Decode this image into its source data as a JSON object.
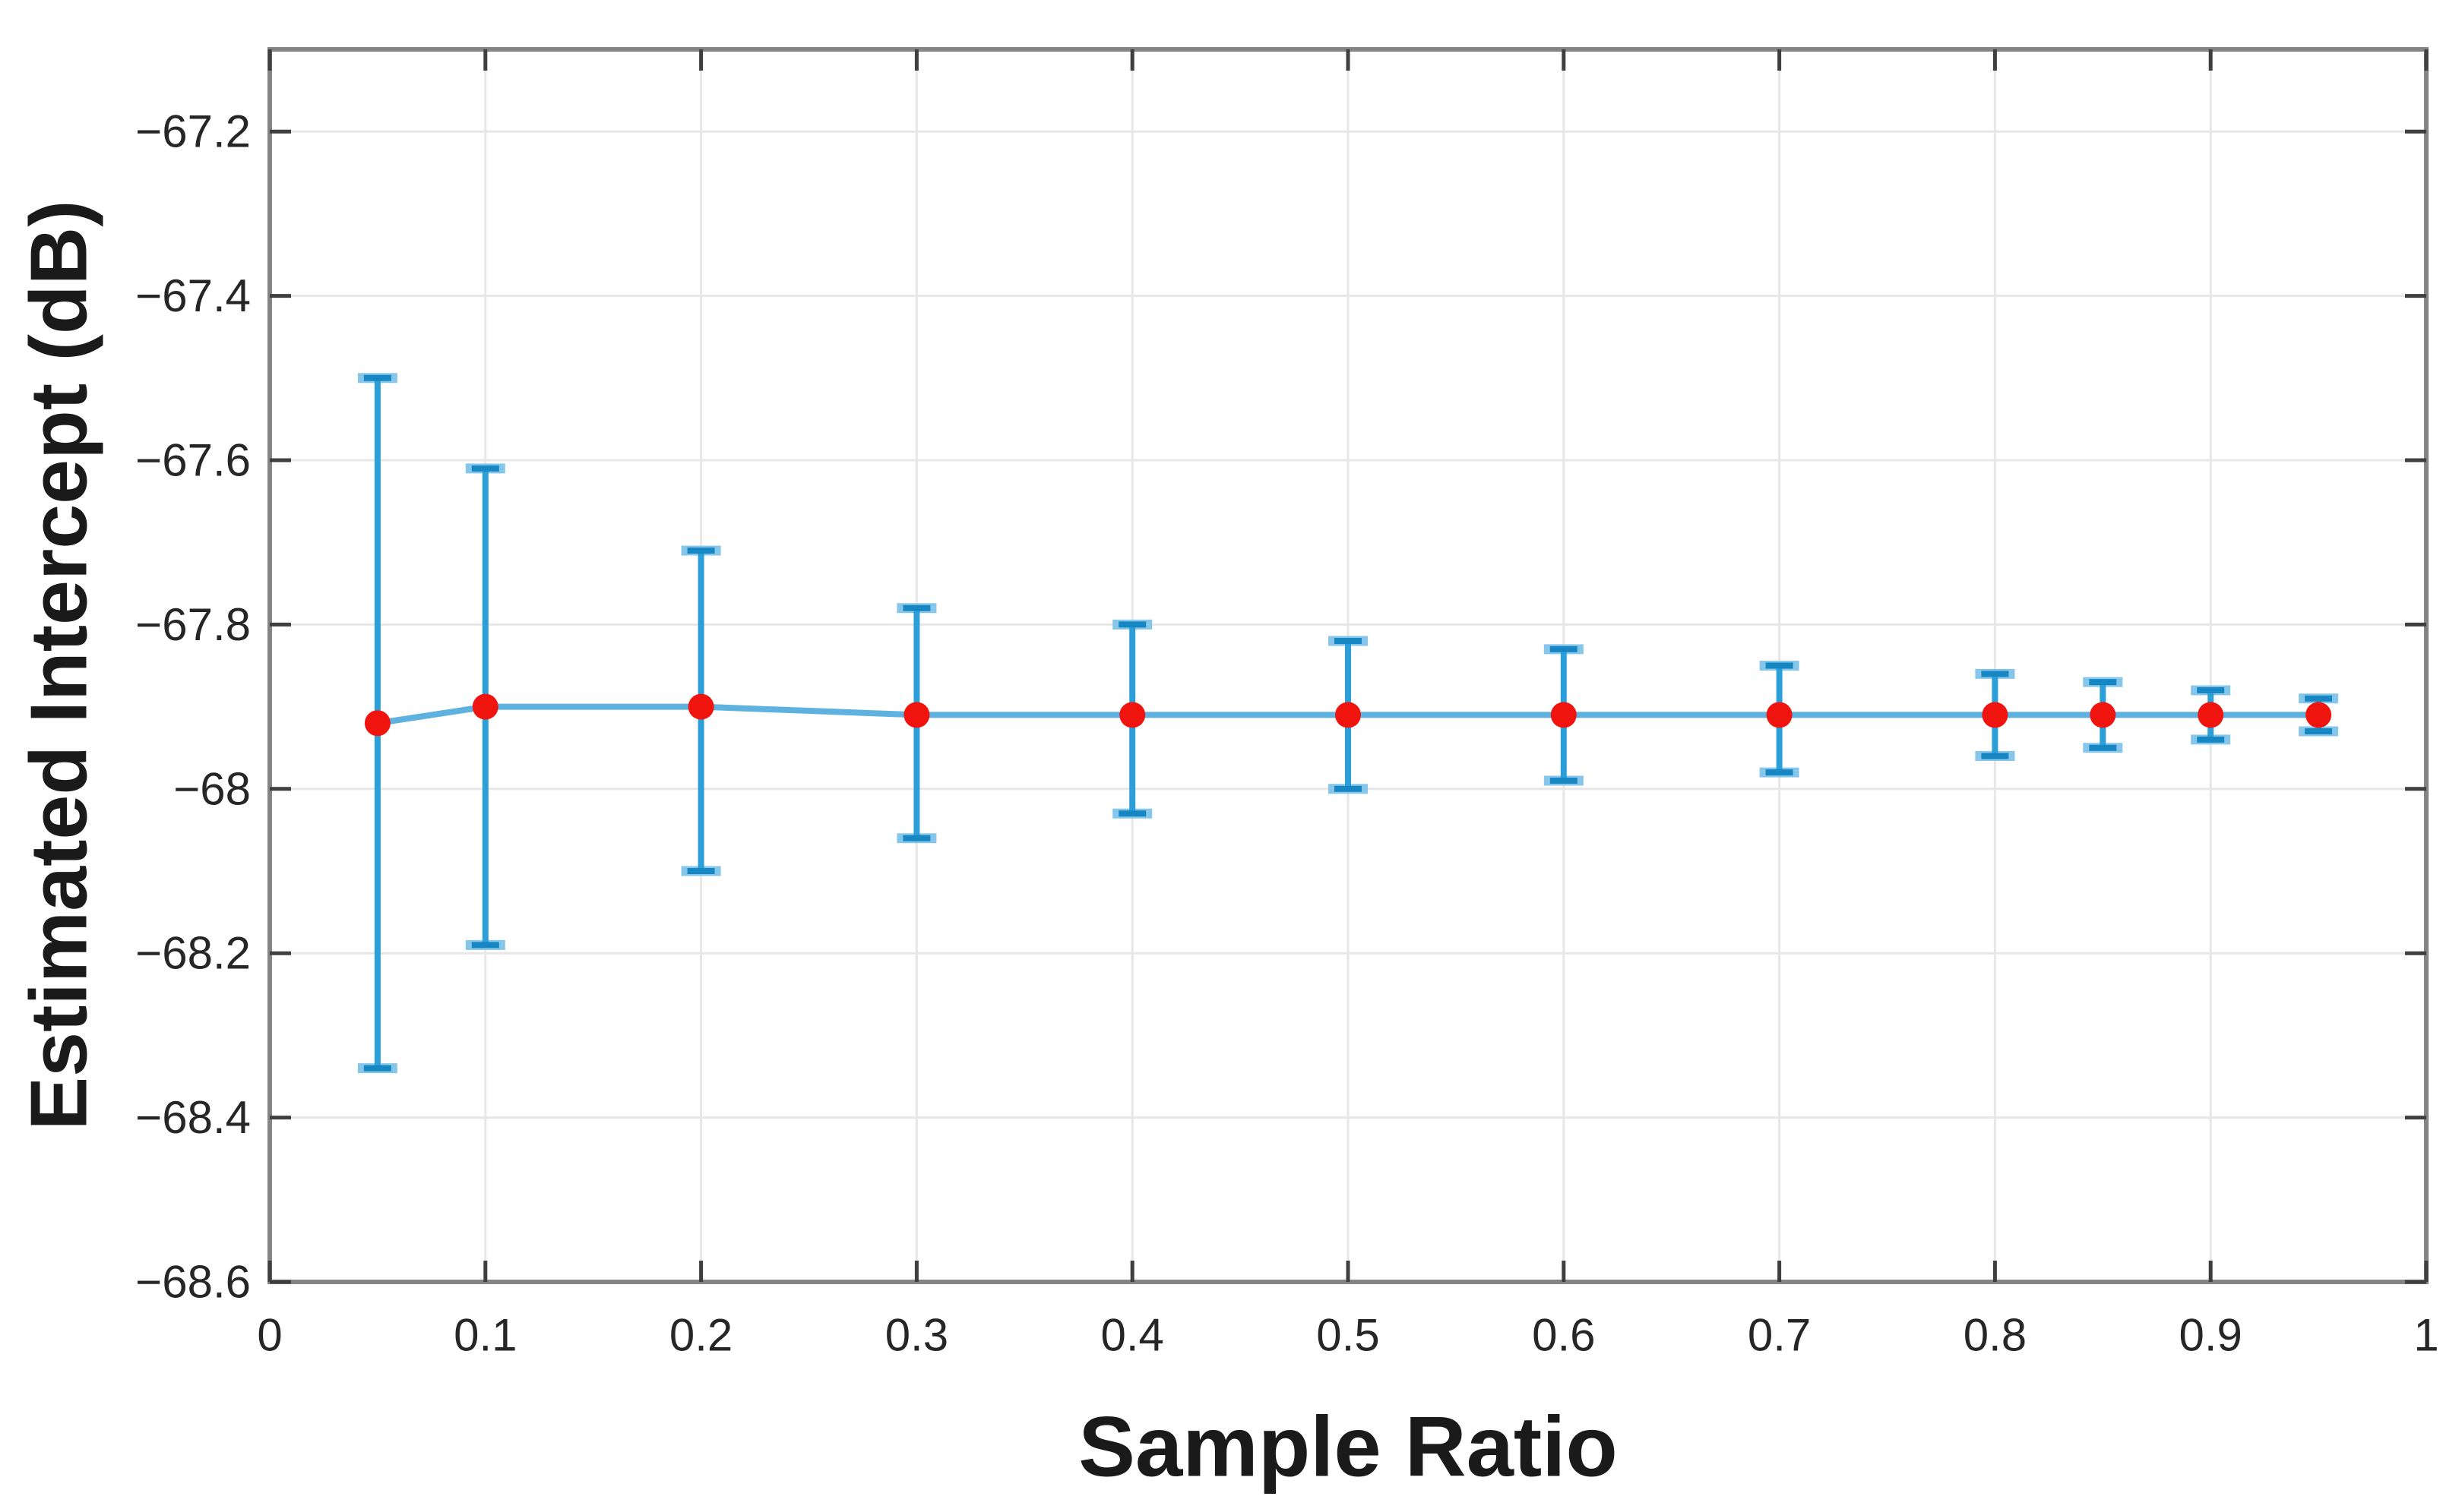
{
  "figure": {
    "background": "#ffffff"
  },
  "chart_data": {
    "type": "line",
    "subtype": "errorbar",
    "title": "",
    "xlabel": "Sample Ratio",
    "ylabel": "Estimated Intercept (dB)",
    "xlim": [
      0,
      1
    ],
    "ylim": [
      -68.6,
      -67.1
    ],
    "grid": true,
    "legend_position": "none",
    "xticks": {
      "values": [
        0,
        0.1,
        0.2,
        0.3,
        0.4,
        0.5,
        0.6,
        0.7,
        0.8,
        0.9,
        1
      ],
      "labels": [
        "0",
        "0.1",
        "0.2",
        "0.3",
        "0.4",
        "0.5",
        "0.6",
        "0.7",
        "0.8",
        "0.9",
        "1"
      ]
    },
    "yticks": {
      "values": [
        -68.6,
        -68.4,
        -68.2,
        -68,
        -67.8,
        -67.6,
        -67.4,
        -67.2
      ],
      "labels": [
        "−68.6",
        "−68.4",
        "−68.2",
        "−68",
        "−67.8",
        "−67.6",
        "−67.4",
        "−67.2"
      ]
    },
    "series": [
      {
        "name": "estimated-intercept-errorbar",
        "x": [
          0.05,
          0.1,
          0.2,
          0.3,
          0.4,
          0.5,
          0.6,
          0.7,
          0.8,
          0.85,
          0.9,
          0.95
        ],
        "y": [
          -67.92,
          -67.9,
          -67.9,
          -67.91,
          -67.91,
          -67.91,
          -67.91,
          -67.91,
          -67.91,
          -67.91,
          -67.91,
          -67.91
        ],
        "y_upper": [
          -67.5,
          -67.61,
          -67.71,
          -67.78,
          -67.8,
          -67.82,
          -67.83,
          -67.85,
          -67.86,
          -67.87,
          -67.88,
          -67.89
        ],
        "y_lower": [
          -68.34,
          -68.19,
          -68.1,
          -68.06,
          -68.03,
          -68.0,
          -67.99,
          -67.98,
          -67.96,
          -67.95,
          -67.94,
          -67.93
        ],
        "marker": "circle"
      }
    ],
    "style": {
      "marker_color": "#f0140f",
      "line_color": "#5fb2df",
      "errorbar_color": "#2d9fd8",
      "errorbar_cap_light": "#85c6ea",
      "errorbar_cap_dark": "#1787c3",
      "grid_color": "#e7e7e7",
      "spine_color": "#858585",
      "tick_color": "#3f3f3f",
      "tick_label_color": "#262626",
      "axis_label_color": "#1a1a1a"
    }
  }
}
